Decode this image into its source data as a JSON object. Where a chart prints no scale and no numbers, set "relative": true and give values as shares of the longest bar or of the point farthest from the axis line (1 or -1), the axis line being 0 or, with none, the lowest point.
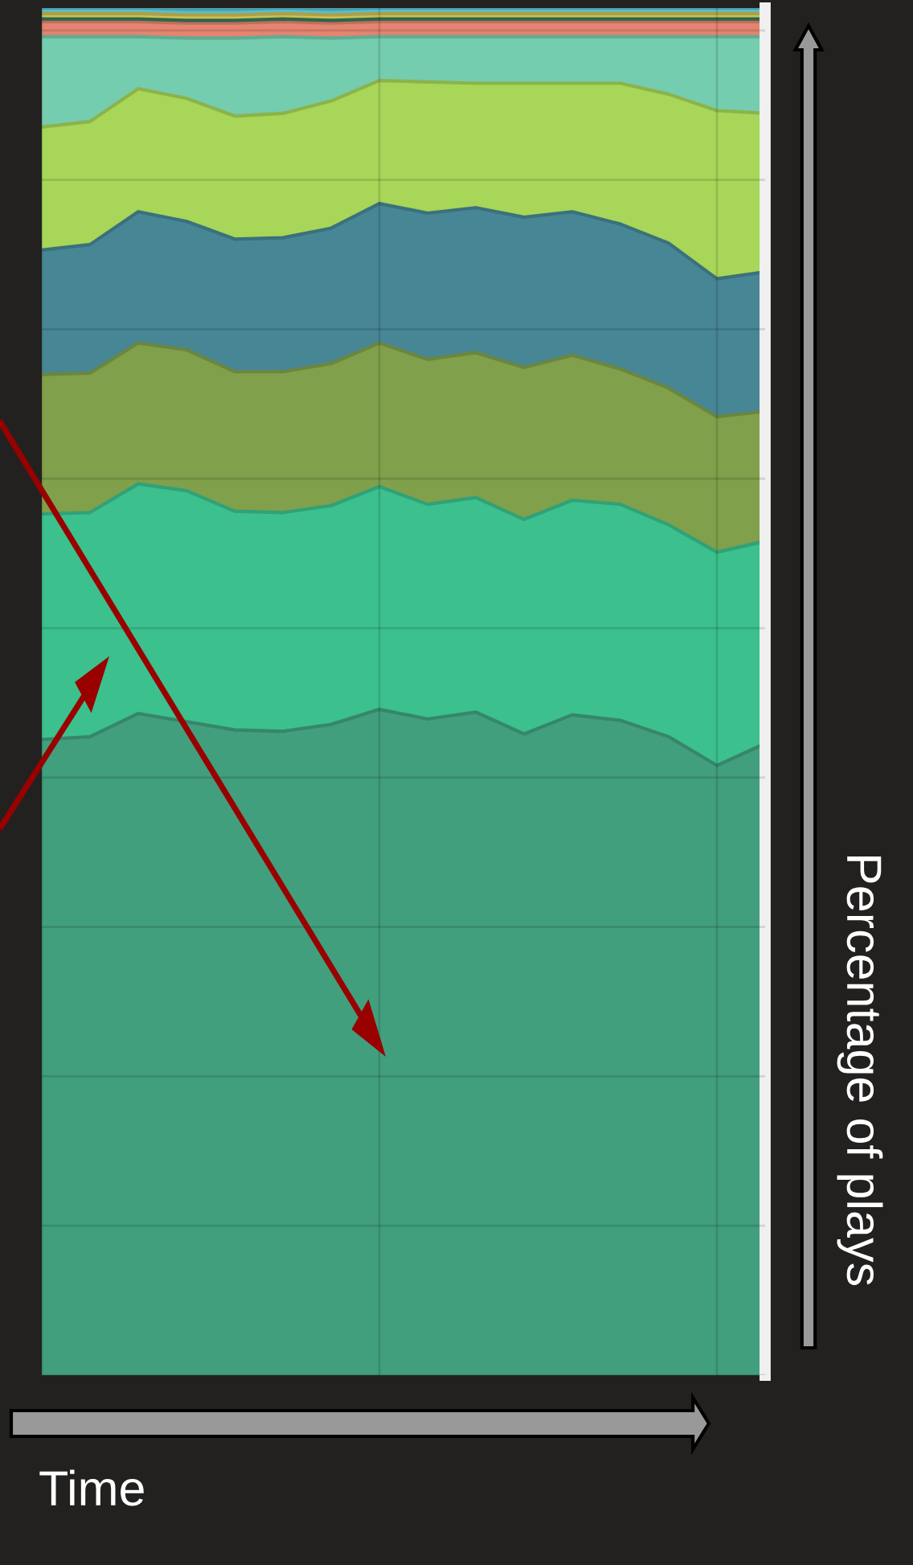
{
  "chart_data": {
    "type": "area",
    "stacked": true,
    "relative": true,
    "xlabel": "Time",
    "ylabel": "Percentage of plays",
    "grid": true,
    "tick_labels": false,
    "categories": [
      null,
      null,
      null,
      null,
      null,
      null,
      null,
      null,
      null,
      null,
      null,
      null,
      null,
      null,
      null,
      null
    ],
    "series": [
      {
        "color": "#43a784",
        "values": [
          0.465,
          0.467,
          0.484,
          0.478,
          0.472,
          0.471,
          0.476,
          0.487,
          0.48,
          0.485,
          0.469,
          0.483,
          0.479,
          0.467,
          0.446,
          0.462
        ]
      },
      {
        "color": "#3dc995",
        "values": [
          0.165,
          0.164,
          0.168,
          0.169,
          0.16,
          0.16,
          0.16,
          0.163,
          0.157,
          0.157,
          0.157,
          0.157,
          0.158,
          0.155,
          0.156,
          0.148
        ]
      },
      {
        "color": "#86a84e",
        "values": [
          0.102,
          0.102,
          0.103,
          0.103,
          0.102,
          0.103,
          0.104,
          0.105,
          0.106,
          0.106,
          0.111,
          0.106,
          0.099,
          0.1,
          0.099,
          0.095
        ]
      },
      {
        "color": "#4a8c9c",
        "values": [
          0.091,
          0.094,
          0.096,
          0.094,
          0.097,
          0.098,
          0.099,
          0.102,
          0.107,
          0.106,
          0.11,
          0.105,
          0.106,
          0.106,
          0.101,
          0.102
        ]
      },
      {
        "color": "#afe05c",
        "values": [
          0.09,
          0.09,
          0.09,
          0.09,
          0.09,
          0.091,
          0.093,
          0.09,
          0.096,
          0.091,
          0.098,
          0.094,
          0.103,
          0.109,
          0.123,
          0.116
        ]
      },
      {
        "color": "#79d7b6",
        "values": [
          0.066,
          0.062,
          0.038,
          0.044,
          0.057,
          0.056,
          0.046,
          0.032,
          0.033,
          0.034,
          0.034,
          0.034,
          0.034,
          0.042,
          0.054,
          0.056
        ]
      },
      {
        "color": "#f08a75",
        "values": [
          0.011,
          0.011,
          0.011,
          0.011,
          0.011,
          0.011,
          0.011,
          0.011,
          0.011,
          0.011,
          0.011,
          0.011,
          0.011,
          0.011,
          0.011,
          0.011
        ]
      },
      {
        "color": "#3a7f5a",
        "values": [
          0.002,
          0.002,
          0.002,
          0.002,
          0.002,
          0.002,
          0.002,
          0.002,
          0.002,
          0.002,
          0.002,
          0.002,
          0.002,
          0.002,
          0.002,
          0.002
        ]
      },
      {
        "color": "#d6c85a",
        "values": [
          0.004,
          0.004,
          0.004,
          0.004,
          0.004,
          0.004,
          0.004,
          0.004,
          0.004,
          0.004,
          0.004,
          0.004,
          0.004,
          0.004,
          0.004,
          0.004
        ]
      },
      {
        "color": "#5bc8d8",
        "values": [
          0.004,
          0.004,
          0.004,
          0.004,
          0.004,
          0.004,
          0.004,
          0.004,
          0.004,
          0.004,
          0.004,
          0.004,
          0.004,
          0.004,
          0.004,
          0.004
        ]
      }
    ]
  }
}
